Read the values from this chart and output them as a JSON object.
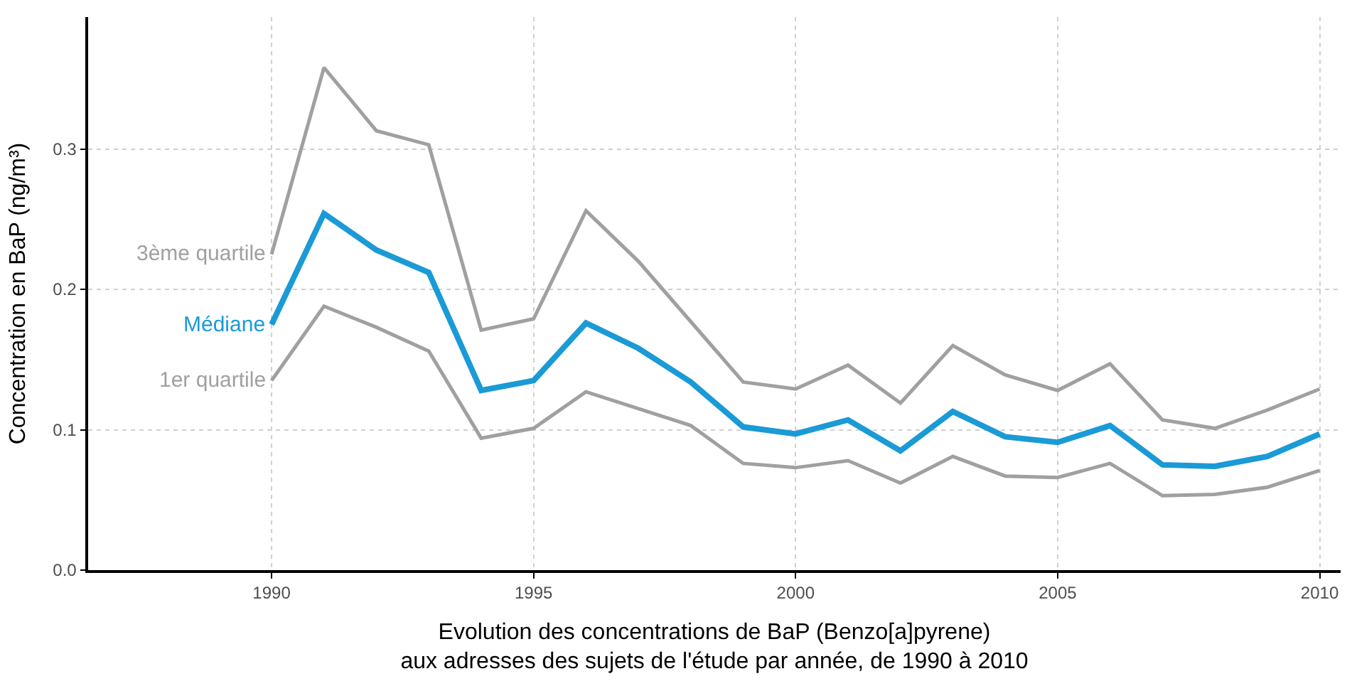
{
  "chart_data": {
    "type": "line",
    "xlabel": "Evolution des concentrations de BaP (Benzo[a]pyrene)\naux adresses des sujets de l'étude par année, de 1990 à 2010",
    "ylabel": "Concentration en BaP (ng/m³)",
    "x": [
      1990,
      1991,
      1992,
      1993,
      1994,
      1995,
      1996,
      1997,
      1998,
      1999,
      2000,
      2001,
      2002,
      2003,
      2004,
      2005,
      2006,
      2007,
      2008,
      2009,
      2010
    ],
    "series": [
      {
        "name": "3ème quartile",
        "color": "#a0a0a0",
        "values": [
          0.225,
          0.358,
          0.313,
          0.303,
          0.171,
          0.179,
          0.256,
          0.22,
          0.177,
          0.134,
          0.129,
          0.146,
          0.119,
          0.16,
          0.139,
          0.128,
          0.147,
          0.107,
          0.101,
          0.114,
          0.129
        ]
      },
      {
        "name": "Médiane",
        "color": "#1a9ad6",
        "values": [
          0.175,
          0.254,
          0.228,
          0.212,
          0.128,
          0.135,
          0.176,
          0.158,
          0.134,
          0.102,
          0.097,
          0.107,
          0.085,
          0.113,
          0.095,
          0.091,
          0.103,
          0.075,
          0.074,
          0.081,
          0.097
        ]
      },
      {
        "name": "1er quartile",
        "color": "#a0a0a0",
        "values": [
          0.135,
          0.188,
          0.173,
          0.156,
          0.094,
          0.101,
          0.127,
          0.115,
          0.103,
          0.076,
          0.073,
          0.078,
          0.062,
          0.081,
          0.067,
          0.066,
          0.076,
          0.053,
          0.054,
          0.059,
          0.071
        ]
      }
    ],
    "xlim": [
      1986.5,
      2010.4
    ],
    "xticks": [
      1990,
      1995,
      2000,
      2005,
      2010
    ],
    "ylim": [
      0,
      0.394
    ],
    "yticks": [
      {
        "value": 0,
        "label": "0.0"
      },
      0.1,
      0.2,
      0.3
    ],
    "grid": true,
    "legend": false,
    "marker": "none",
    "line_style": "solid"
  }
}
